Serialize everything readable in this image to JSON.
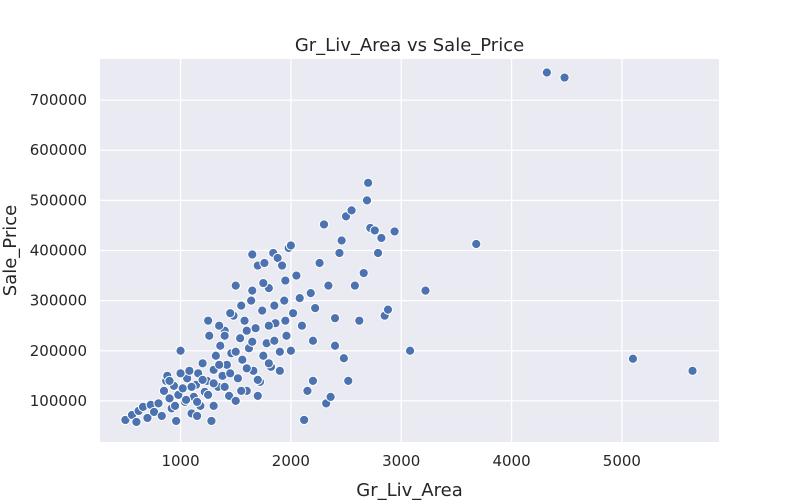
{
  "chart_data": {
    "type": "scatter",
    "title": "Gr_Liv_Area vs Sale_Price",
    "xlabel": "Gr_Liv_Area",
    "ylabel": "Sale_Price",
    "xlim": [
      270,
      5880
    ],
    "ylim": [
      18000,
      782000
    ],
    "xticks": [
      1000,
      2000,
      3000,
      4000,
      5000
    ],
    "yticks": [
      100000,
      200000,
      300000,
      400000,
      500000,
      600000,
      700000
    ],
    "xtick_labels": [
      "1000",
      "2000",
      "3000",
      "4000",
      "5000"
    ],
    "ytick_labels": [
      "100000",
      "200000",
      "300000",
      "400000",
      "500000",
      "600000",
      "700000"
    ],
    "grid": true,
    "colors": {
      "point": "#4c72b0",
      "background": "#eaeaf2",
      "grid": "#ffffff"
    },
    "points": [
      [
        500,
        62000
      ],
      [
        560,
        72000
      ],
      [
        600,
        58000
      ],
      [
        620,
        80000
      ],
      [
        660,
        88000
      ],
      [
        700,
        66000
      ],
      [
        730,
        92000
      ],
      [
        760,
        78000
      ],
      [
        800,
        95000
      ],
      [
        830,
        70000
      ],
      [
        850,
        120000
      ],
      [
        870,
        140000
      ],
      [
        880,
        150000
      ],
      [
        900,
        105000
      ],
      [
        920,
        85000
      ],
      [
        940,
        130000
      ],
      [
        960,
        60000
      ],
      [
        980,
        112000
      ],
      [
        1000,
        200000
      ],
      [
        1020,
        125000
      ],
      [
        1040,
        98000
      ],
      [
        1060,
        145000
      ],
      [
        1080,
        160000
      ],
      [
        1100,
        75000
      ],
      [
        1120,
        108000
      ],
      [
        1140,
        132000
      ],
      [
        1160,
        155000
      ],
      [
        1180,
        90000
      ],
      [
        1200,
        175000
      ],
      [
        1220,
        118000
      ],
      [
        1240,
        140000
      ],
      [
        1260,
        230000
      ],
      [
        1280,
        60000
      ],
      [
        1300,
        162000
      ],
      [
        1320,
        190000
      ],
      [
        1340,
        128000
      ],
      [
        1360,
        210000
      ],
      [
        1380,
        150000
      ],
      [
        1400,
        240000
      ],
      [
        1420,
        172000
      ],
      [
        1440,
        110000
      ],
      [
        1460,
        195000
      ],
      [
        1480,
        270000
      ],
      [
        1500,
        330000
      ],
      [
        1520,
        145000
      ],
      [
        1540,
        225000
      ],
      [
        1560,
        182000
      ],
      [
        1580,
        260000
      ],
      [
        1600,
        120000
      ],
      [
        1620,
        205000
      ],
      [
        1640,
        300000
      ],
      [
        1650,
        392000
      ],
      [
        1660,
        160000
      ],
      [
        1680,
        245000
      ],
      [
        1700,
        370000
      ],
      [
        1720,
        138000
      ],
      [
        1740,
        280000
      ],
      [
        1760,
        375000
      ],
      [
        1780,
        215000
      ],
      [
        1800,
        325000
      ],
      [
        1820,
        168000
      ],
      [
        1840,
        395000
      ],
      [
        1860,
        255000
      ],
      [
        1880,
        385000
      ],
      [
        1900,
        198000
      ],
      [
        1920,
        370000
      ],
      [
        1940,
        300000
      ],
      [
        1960,
        230000
      ],
      [
        1980,
        405000
      ],
      [
        2000,
        410000
      ],
      [
        2020,
        275000
      ],
      [
        2050,
        350000
      ],
      [
        2080,
        305000
      ],
      [
        2100,
        250000
      ],
      [
        2120,
        62000
      ],
      [
        2150,
        120000
      ],
      [
        2180,
        315000
      ],
      [
        2200,
        140000
      ],
      [
        2220,
        285000
      ],
      [
        2260,
        375000
      ],
      [
        2300,
        452000
      ],
      [
        2320,
        95000
      ],
      [
        2340,
        330000
      ],
      [
        2360,
        108000
      ],
      [
        2400,
        265000
      ],
      [
        2440,
        395000
      ],
      [
        2460,
        420000
      ],
      [
        2480,
        185000
      ],
      [
        2500,
        468000
      ],
      [
        2520,
        140000
      ],
      [
        2550,
        480000
      ],
      [
        2580,
        330000
      ],
      [
        2620,
        260000
      ],
      [
        2660,
        355000
      ],
      [
        2690,
        500000
      ],
      [
        2700,
        535000
      ],
      [
        2720,
        445000
      ],
      [
        2760,
        440000
      ],
      [
        2790,
        395000
      ],
      [
        2820,
        425000
      ],
      [
        2850,
        270000
      ],
      [
        2880,
        282000
      ],
      [
        2940,
        438000
      ],
      [
        3080,
        200000
      ],
      [
        3220,
        320000
      ],
      [
        3680,
        413000
      ],
      [
        4320,
        755000
      ],
      [
        4480,
        745000
      ],
      [
        5100,
        184000
      ],
      [
        5640,
        160000
      ],
      [
        900,
        140000
      ],
      [
        950,
        90000
      ],
      [
        1000,
        155000
      ],
      [
        1050,
        102000
      ],
      [
        1100,
        128000
      ],
      [
        1150,
        98000
      ],
      [
        1200,
        142000
      ],
      [
        1250,
        112000
      ],
      [
        1300,
        135000
      ],
      [
        1350,
        172000
      ],
      [
        1400,
        128000
      ],
      [
        1450,
        155000
      ],
      [
        1500,
        198000
      ],
      [
        1550,
        120000
      ],
      [
        1600,
        165000
      ],
      [
        1650,
        218000
      ],
      [
        1700,
        142000
      ],
      [
        1750,
        190000
      ],
      [
        1800,
        175000
      ],
      [
        1850,
        220000
      ],
      [
        1900,
        160000
      ],
      [
        1950,
        260000
      ],
      [
        2000,
        200000
      ],
      [
        1250,
        260000
      ],
      [
        1350,
        250000
      ],
      [
        1450,
        275000
      ],
      [
        1550,
        290000
      ],
      [
        1650,
        320000
      ],
      [
        1750,
        335000
      ],
      [
        1850,
        290000
      ],
      [
        1950,
        340000
      ],
      [
        1700,
        110000
      ],
      [
        1500,
        100000
      ],
      [
        1300,
        90000
      ],
      [
        1150,
        70000
      ],
      [
        1400,
        230000
      ],
      [
        1600,
        240000
      ],
      [
        1800,
        250000
      ],
      [
        2200,
        220000
      ],
      [
        2400,
        210000
      ]
    ]
  }
}
